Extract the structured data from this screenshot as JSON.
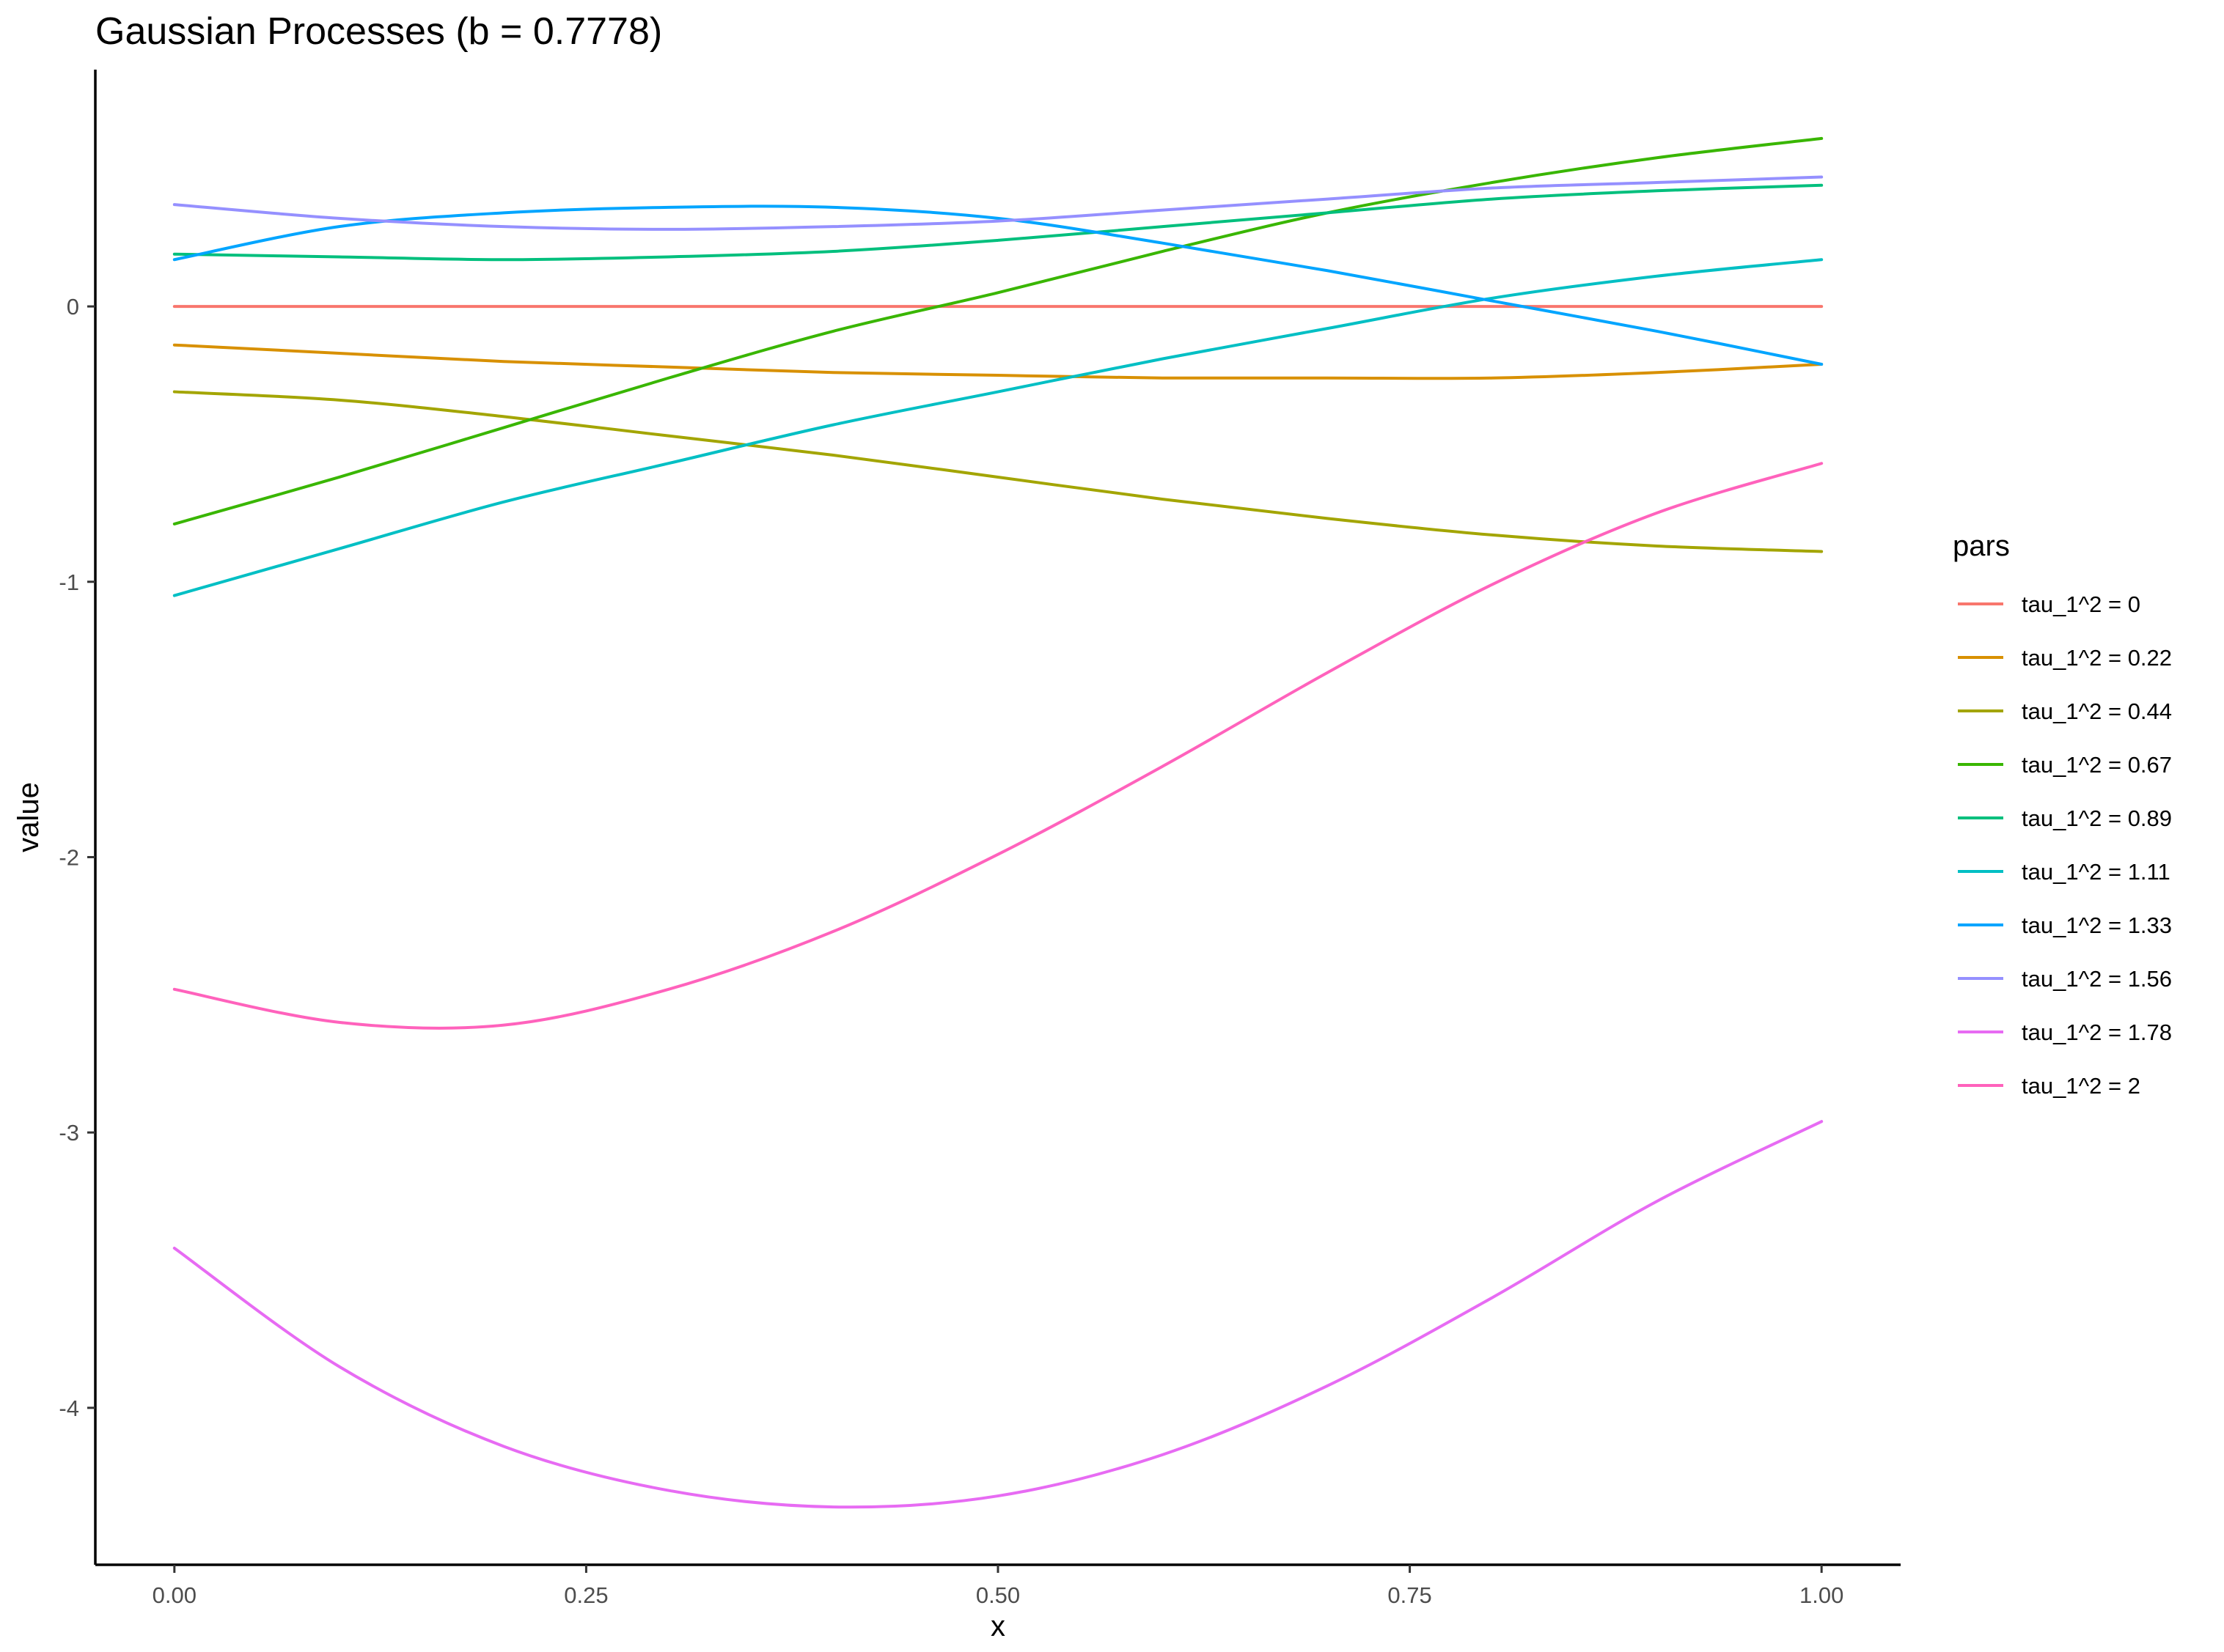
{
  "chart_data": {
    "type": "line",
    "title": "Gaussian Processes (b = 0.7778)",
    "xlabel": "x",
    "ylabel": "value",
    "xlim": [
      -0.048,
      1.048
    ],
    "ylim": [
      -4.57,
      0.86
    ],
    "xticks": [
      0,
      0.25,
      0.5,
      0.75,
      1
    ],
    "xtick_labels": [
      "0.00",
      "0.25",
      "0.50",
      "0.75",
      "1.00"
    ],
    "yticks": [
      0,
      -1,
      -2,
      -3,
      -4
    ],
    "ytick_labels": [
      "0",
      "-1",
      "-2",
      "-3",
      "-4"
    ],
    "grid": false,
    "legend": {
      "title": "pars",
      "position": "right"
    },
    "x": [
      0,
      0.1,
      0.2,
      0.3,
      0.4,
      0.5,
      0.6,
      0.7,
      0.8,
      0.9,
      1.0
    ],
    "series": [
      {
        "name": "tau_1^2 = 0",
        "color": "#F8766D",
        "values": [
          0,
          0,
          0,
          0,
          0,
          0,
          0,
          0,
          0,
          0,
          0
        ]
      },
      {
        "name": "tau_1^2 = 0.22",
        "color": "#D89000",
        "values": [
          -0.14,
          -0.17,
          -0.2,
          -0.22,
          -0.24,
          -0.25,
          -0.26,
          -0.26,
          -0.26,
          -0.24,
          -0.21
        ]
      },
      {
        "name": "tau_1^2 = 0.44",
        "color": "#A3A500",
        "values": [
          -0.31,
          -0.34,
          -0.4,
          -0.47,
          -0.54,
          -0.62,
          -0.7,
          -0.77,
          -0.83,
          -0.87,
          -0.89
        ]
      },
      {
        "name": "tau_1^2 = 0.67",
        "color": "#39B600",
        "values": [
          -0.79,
          -0.62,
          -0.44,
          -0.26,
          -0.09,
          0.05,
          0.2,
          0.34,
          0.45,
          0.54,
          0.61
        ]
      },
      {
        "name": "tau_1^2 = 0.89",
        "color": "#00BF7D",
        "values": [
          0.19,
          0.18,
          0.17,
          0.18,
          0.2,
          0.24,
          0.29,
          0.34,
          0.39,
          0.42,
          0.44
        ]
      },
      {
        "name": "tau_1^2 = 1.11",
        "color": "#00BFC4",
        "values": [
          -1.05,
          -0.88,
          -0.71,
          -0.57,
          -0.43,
          -0.31,
          -0.19,
          -0.08,
          0.03,
          0.11,
          0.17
        ]
      },
      {
        "name": "tau_1^2 = 1.33",
        "color": "#00A5FF",
        "values": [
          0.17,
          0.29,
          0.34,
          0.36,
          0.36,
          0.32,
          0.23,
          0.13,
          0.02,
          -0.09,
          -0.21
        ]
      },
      {
        "name": "tau_1^2 = 1.56",
        "color": "#9590FF",
        "values": [
          0.37,
          0.32,
          0.29,
          0.28,
          0.29,
          0.31,
          0.35,
          0.39,
          0.43,
          0.45,
          0.47
        ]
      },
      {
        "name": "tau_1^2 = 1.78",
        "color": "#E76BF3",
        "values": [
          -3.42,
          -3.85,
          -4.14,
          -4.3,
          -4.36,
          -4.32,
          -4.17,
          -3.92,
          -3.6,
          -3.25,
          -2.96
        ]
      },
      {
        "name": "tau_1^2 = 2",
        "color": "#FF62BC",
        "values": [
          -2.48,
          -2.6,
          -2.61,
          -2.48,
          -2.27,
          -1.99,
          -1.67,
          -1.33,
          -1.01,
          -0.75,
          -0.57
        ]
      }
    ]
  }
}
